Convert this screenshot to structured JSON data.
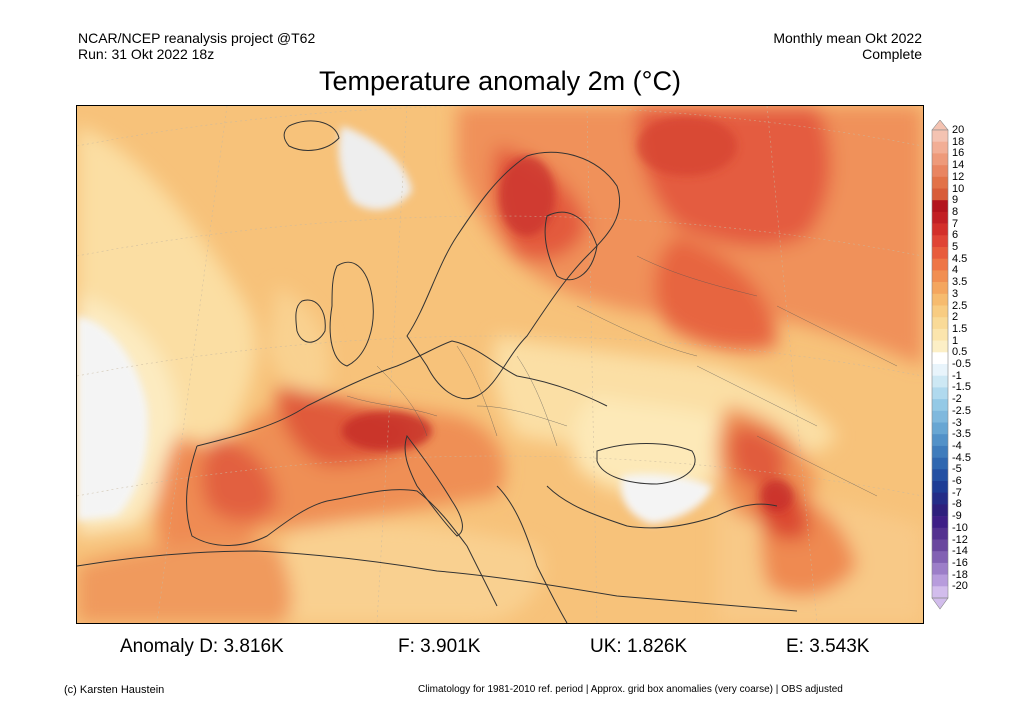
{
  "header": {
    "source": "NCAR/NCEP reanalysis project @T62",
    "run": "Run: 31 Okt 2022 18z",
    "period": "Monthly mean Okt 2022",
    "status": "Complete"
  },
  "map": {
    "title": "Temperature anomaly 2m (°C)",
    "colors": {
      "ocean_base": "#f7c27a",
      "cool_pale": "#fbe7b3",
      "warm_orange": "#f19456",
      "warm_red": "#e55a3d",
      "hot_red": "#c9302c",
      "neutral_white": "#ffffff",
      "gray_zero": "#eeeeee",
      "border_line": "#333333"
    },
    "legend": {
      "labels": [
        "20",
        "18",
        "16",
        "14",
        "12",
        "10",
        "9",
        "8",
        "7",
        "6",
        "5",
        "4.5",
        "4",
        "3.5",
        "3",
        "2.5",
        "2",
        "1.5",
        "1",
        "0.5",
        "-0.5",
        "-1",
        "-1.5",
        "-2",
        "-2.5",
        "-3",
        "-3.5",
        "-4",
        "-4.5",
        "-5",
        "-6",
        "-7",
        "-8",
        "-9",
        "-10",
        "-12",
        "-14",
        "-16",
        "-18",
        "-20"
      ],
      "colors": [
        "#f4c3b2",
        "#f2ae95",
        "#ee9a7a",
        "#e98561",
        "#e27248",
        "#d85c38",
        "#b3141d",
        "#c21f24",
        "#d32f2a",
        "#e04435",
        "#e85c3c",
        "#ee7646",
        "#f18f52",
        "#f4a65f",
        "#f6bb6f",
        "#f8cc82",
        "#f9da97",
        "#fbe5ad",
        "#fcefc6",
        "#ffffff",
        "#e8f4fb",
        "#cde8f4",
        "#b0d9ee",
        "#94c9e6",
        "#7fb8dd",
        "#68a6d3",
        "#5291c8",
        "#3f7cbc",
        "#2f67b0",
        "#2350a3",
        "#1d3c95",
        "#232c87",
        "#2d1f7c",
        "#3e1e86",
        "#53318f",
        "#6a479e",
        "#8261b3",
        "#9c7ec8",
        "#b79cdc",
        "#d2bdec"
      ]
    },
    "stats": {
      "d": "Anomaly D: 3.816K",
      "f": "F: 3.901K",
      "uk": "UK: 1.826K",
      "e": "E: 3.543K"
    },
    "footer": {
      "credit": "(c) Karsten Haustein",
      "note": "Climatology for 1981-2010 ref. period | Approx. grid box anomalies (very coarse) | OBS adjusted"
    }
  }
}
